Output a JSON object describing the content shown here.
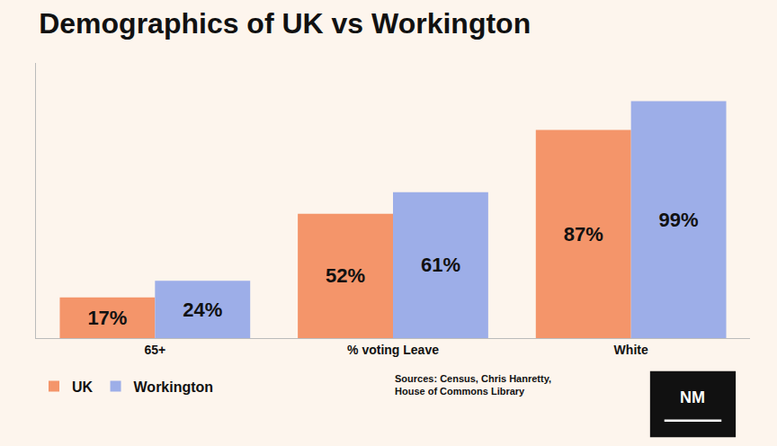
{
  "chart_data": {
    "type": "bar",
    "title": "Demographics of UK vs Workington",
    "categories": [
      "65+",
      "% voting Leave",
      "White"
    ],
    "series": [
      {
        "name": "UK",
        "color": "#f4956a",
        "values": [
          17,
          52,
          87
        ],
        "value_labels": [
          "17%",
          "52%",
          "87%"
        ]
      },
      {
        "name": "Workington",
        "color": "#9daee8",
        "values": [
          24,
          61,
          99
        ],
        "value_labels": [
          "24%",
          "61%",
          "99%"
        ]
      }
    ],
    "ylim": [
      0,
      115
    ],
    "yticks": [],
    "grid": false,
    "legend": "bottom left",
    "data_labels": true,
    "tick_labels": "x",
    "annotations": [
      "Sources: Census, Chris Hanretty,\nHouse of Commons Library",
      "NM"
    ]
  }
}
